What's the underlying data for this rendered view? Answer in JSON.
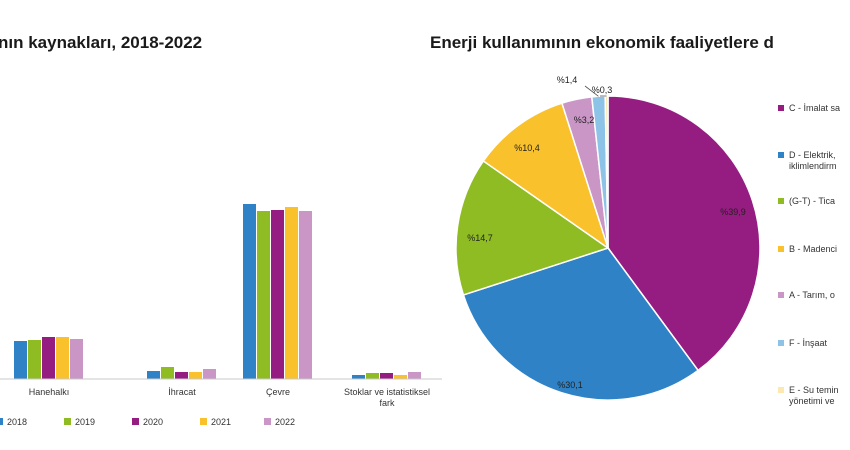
{
  "chart_data": [
    {
      "type": "bar",
      "title": "nın kaynakları, 2018-2022",
      "categories": [
        "Hanehalkı",
        "İhracat",
        "Çevre",
        "Stoklar ve istatistiksel fark"
      ],
      "series": [
        {
          "name": "2018",
          "color": "#2f82c6",
          "values": [
            38,
            8,
            175,
            4
          ]
        },
        {
          "name": "2019",
          "color": "#8fbc23",
          "values": [
            39,
            12,
            168,
            6
          ]
        },
        {
          "name": "2020",
          "color": "#951c80",
          "values": [
            42,
            7,
            169,
            6
          ]
        },
        {
          "name": "2021",
          "color": "#f9c12c",
          "values": [
            42,
            7,
            172,
            4
          ]
        },
        {
          "name": "2022",
          "color": "#c996c6",
          "values": [
            40,
            10,
            168,
            7
          ]
        }
      ],
      "ylim": [
        0,
        250
      ],
      "grid": false,
      "legend": "bottom"
    },
    {
      "type": "pie",
      "title": "Enerji kullanımının ekonomik faaliyetlere d",
      "slices": [
        {
          "name": "C - İmalat sa",
          "value": 39.9,
          "label": "%39,9",
          "color": "#951c80"
        },
        {
          "name": "D - Elektrik,",
          "name2": "iklimlendirm",
          "value": 30.1,
          "label": "%30,1",
          "color": "#2f82c6"
        },
        {
          "name": "(G-T) - Tica",
          "value": 14.7,
          "label": "%14,7",
          "color": "#8fbc23"
        },
        {
          "name": "B - Madenci",
          "value": 10.4,
          "label": "%10,4",
          "color": "#f9c12c"
        },
        {
          "name": "A - Tarım, o",
          "value": 3.2,
          "label": "%3,2",
          "color": "#c996c6"
        },
        {
          "name": "F - İnşaat",
          "value": 1.4,
          "label": "%1,4",
          "color": "#8ec3e8"
        },
        {
          "name": "E - Su temin",
          "name2": "yönetimi ve",
          "value": 0.3,
          "label": "%0,3",
          "color": "#fde8b0"
        }
      ],
      "legend": "right"
    }
  ]
}
